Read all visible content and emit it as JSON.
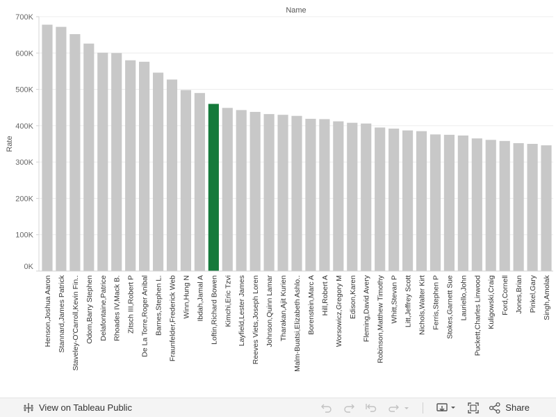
{
  "chart_data": {
    "type": "bar",
    "title": "Name",
    "xlabel": "",
    "ylabel": "Rate",
    "ylim": [
      0,
      700000
    ],
    "yticks": [
      0,
      100000,
      200000,
      300000,
      400000,
      500000,
      600000,
      700000
    ],
    "ytick_labels": [
      "0K",
      "100K",
      "200K",
      "300K",
      "400K",
      "500K",
      "600K",
      "700K"
    ],
    "grid": true,
    "bar_color": "#c8c8c8",
    "highlight_color": "#157a3b",
    "highlight_category": "Loftin,Richard Bowen",
    "categories": [
      "Henson,Joshua Aaron",
      "Stannard,James Patrick",
      "Staveley-O'Carroll,Kevin Fin..",
      "Odom,Barry Stephen",
      "Delafontaine,Patrice",
      "Rhoades IV,Mack B.",
      "Zitsch III,Robert P",
      "De La Torre,Roger Anibal",
      "Barnes,Stephen L.",
      "Fraunfelder,Frederick Web",
      "Winn,Hung N",
      "Ibdah,Jamal A",
      "Loftin,Richard Bowen",
      "Kimchi,Eric Tzvi",
      "Layfield,Lester James",
      "Reeves Viets,Joseph Loren",
      "Johnson,Quinn Lamar",
      "Tharakan,Ajit Kurien",
      "Malm-Buatsi,Elizabeth Ashlo..",
      "Borenstein,Marc A",
      "Hill,Robert A",
      "Worsowicz,Gregory M",
      "Edison,Karen",
      "Fleming,David Avery",
      "Robinson,Matthew Timothy",
      "Whitt,Stevan P",
      "Litt,Jeffrey Scott",
      "Nichols,Walter Kirt",
      "Ferris,Stephen P",
      "Stokes,Garnett Sue",
      "Lauriello,John",
      "Puckett,Charles Linwood",
      "Kuligowski,Craig",
      "Ford,Cornell",
      "Jones,Brian",
      "Pinkel,Gary",
      "Singh,Amolak"
    ],
    "values": [
      678000,
      672000,
      652000,
      626000,
      601000,
      600000,
      580000,
      576000,
      546000,
      527000,
      498000,
      490000,
      460000,
      449000,
      443000,
      438000,
      432000,
      430000,
      427000,
      419000,
      418000,
      412000,
      408000,
      406000,
      395000,
      392000,
      387000,
      385000,
      376000,
      375000,
      373000,
      365000,
      361000,
      358000,
      352000,
      350000,
      346000
    ]
  },
  "toolbar": {
    "view_label": "View on Tableau Public",
    "share_label": "Share",
    "logo_icon": "tableau-logo-icon",
    "undo_icon": "undo-icon",
    "redo_icon": "redo-icon",
    "revert_icon": "revert-icon",
    "refresh_icon": "refresh-icon",
    "download_icon": "download-icon",
    "fullscreen_icon": "fullscreen-icon",
    "share_icon": "share-icon"
  }
}
